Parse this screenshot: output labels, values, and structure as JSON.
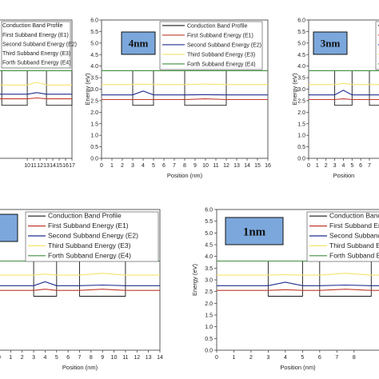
{
  "legend_labels": [
    "Conduction Band Profile",
    "First Subband Energy (E1)",
    "Second Subband Energy (E2)",
    "Third Subband Energy (E3)",
    "Forth Subband Energy (E4)"
  ],
  "legend_labels_partial": [
    "Conduction Band Profile",
    "First Subband Energy (E1)",
    "Second Subband Energy (E2)",
    "Third Subband Energy (E3)",
    "Forth Subband Energy (E4)"
  ],
  "colors": {
    "cb": "#1a1a1a",
    "e1": "#c0392b",
    "e2": "#1f2c8f",
    "e3": "#f7e36b",
    "e4": "#3f8f3f",
    "tag_bg": "#7ba7dc"
  },
  "chart_data": [
    {
      "type": "line",
      "panel": "top-left (partially visible)",
      "xlabel": "",
      "ylabel": "",
      "xticks": [
        10,
        11,
        12,
        13,
        14,
        15,
        16,
        17
      ],
      "xlim": [
        5.6,
        17
      ],
      "ylim": [
        0,
        6
      ],
      "wells": [
        [
          6,
          10
        ],
        [
          13,
          17
        ]
      ],
      "cb": {
        "barrier": 3.8,
        "well": 2.3
      },
      "series": [
        {
          "name": "First Subband Energy (E1)",
          "color_key": "e1",
          "x": [
            5.6,
            10,
            11.5,
            13,
            17
          ],
          "y": [
            2.58,
            2.58,
            2.62,
            2.58,
            2.58
          ]
        },
        {
          "name": "Second Subband Energy (E2)",
          "color_key": "e2",
          "x": [
            5.6,
            10,
            11.5,
            13,
            17
          ],
          "y": [
            2.78,
            2.78,
            2.85,
            2.78,
            2.78
          ]
        },
        {
          "name": "Third Subband Energy (E3)",
          "color_key": "e3",
          "x": [
            5.6,
            10,
            11.5,
            13,
            17
          ],
          "y": [
            3.18,
            3.18,
            3.3,
            3.18,
            3.18
          ]
        },
        {
          "name": "Forth Subband Energy (E4)",
          "color_key": "e4",
          "x": [
            5.6,
            17
          ],
          "y": [
            3.8,
            3.8
          ]
        }
      ]
    },
    {
      "type": "line",
      "panel": "top-middle",
      "tag": "4nm",
      "xlabel": "Position (nm)",
      "ylabel": "Energy (eV)",
      "xticks": [
        0,
        1,
        2,
        3,
        4,
        5,
        6,
        7,
        8,
        9,
        10,
        11,
        12,
        13,
        14,
        15,
        16
      ],
      "yticks": [
        "0.0",
        "0.5",
        "1.0",
        "1.5",
        "2.0",
        "2.5",
        "3.0",
        "3.5",
        "4.0",
        "4.5",
        "5.0",
        "5.5",
        "6.0"
      ],
      "xlim": [
        0,
        16
      ],
      "ylim": [
        0,
        6
      ],
      "wells": [
        [
          3,
          5
        ],
        [
          8,
          12
        ]
      ],
      "cb": {
        "barrier": 3.8,
        "well": 2.3
      },
      "series": [
        {
          "name": "First Subband Energy (E1)",
          "color_key": "e1",
          "x": [
            0,
            3,
            4,
            5,
            8,
            10,
            12,
            16
          ],
          "y": [
            2.55,
            2.55,
            2.55,
            2.55,
            2.55,
            2.58,
            2.55,
            2.55
          ]
        },
        {
          "name": "Second Subband Energy (E2)",
          "color_key": "e2",
          "x": [
            0,
            3,
            4,
            5,
            8,
            10,
            12,
            16
          ],
          "y": [
            2.75,
            2.75,
            2.92,
            2.75,
            2.75,
            2.76,
            2.75,
            2.75
          ]
        },
        {
          "name": "Third Subband Energy (E3)",
          "color_key": "e3",
          "x": [
            0,
            3,
            4,
            5,
            8,
            10,
            12,
            16
          ],
          "y": [
            3.2,
            3.2,
            3.22,
            3.2,
            3.2,
            3.22,
            3.2,
            3.2
          ]
        },
        {
          "name": "Forth Subband Energy (E4)",
          "color_key": "e4",
          "x": [
            0,
            16
          ],
          "y": [
            3.8,
            3.8
          ]
        }
      ]
    },
    {
      "type": "line",
      "panel": "top-right (partially visible)",
      "tag": "3nm",
      "xlabel": "Position",
      "ylabel": "Energy (eV)",
      "xticks": [
        0,
        1,
        2,
        3,
        4,
        5,
        6,
        7
      ],
      "yticks": [
        "0.0",
        "0.5",
        "1.0",
        "1.5",
        "2.0",
        "2.5",
        "3.0",
        "3.5",
        "4.0",
        "4.5",
        "5.0",
        "5.5",
        "6.0"
      ],
      "xlim": [
        0,
        8.2
      ],
      "ylim": [
        0,
        6
      ],
      "wells": [
        [
          3,
          5
        ],
        [
          7,
          10
        ]
      ],
      "cb": {
        "barrier": 3.8,
        "well": 2.3
      },
      "series": [
        {
          "name": "First Subband Energy (E1)",
          "color_key": "e1",
          "x": [
            0,
            3,
            4,
            5,
            8.2
          ],
          "y": [
            2.55,
            2.55,
            2.58,
            2.55,
            2.55
          ]
        },
        {
          "name": "Second Subband Energy (E2)",
          "color_key": "e2",
          "x": [
            0,
            3,
            4,
            5,
            8.2
          ],
          "y": [
            2.75,
            2.75,
            2.95,
            2.75,
            2.75
          ]
        },
        {
          "name": "Third Subband Energy (E3)",
          "color_key": "e3",
          "x": [
            0,
            3,
            4,
            5,
            8.2
          ],
          "y": [
            3.2,
            3.2,
            3.25,
            3.2,
            3.2
          ]
        },
        {
          "name": "Forth Subband Energy (E4)",
          "color_key": "e4",
          "x": [
            0,
            8.2
          ],
          "y": [
            3.8,
            3.8
          ]
        }
      ]
    },
    {
      "type": "line",
      "panel": "bottom-left (partially visible)",
      "xlabel": "Position (nm)",
      "ylabel": "",
      "xticks": [
        0,
        1,
        2,
        3,
        4,
        5,
        6,
        7,
        8,
        9,
        10,
        11,
        12,
        13,
        14
      ],
      "xlim": [
        0,
        14
      ],
      "ylim": [
        0,
        6
      ],
      "wells": [
        [
          3,
          5
        ],
        [
          7,
          11
        ]
      ],
      "cb": {
        "barrier": 3.8,
        "well": 2.3
      },
      "series": [
        {
          "name": "First Subband Energy (E1)",
          "color_key": "e1",
          "x": [
            0,
            3,
            4,
            5,
            7,
            9,
            11,
            14
          ],
          "y": [
            2.55,
            2.55,
            2.6,
            2.55,
            2.55,
            2.6,
            2.55,
            2.55
          ]
        },
        {
          "name": "Second Subband Energy (E2)",
          "color_key": "e2",
          "x": [
            0,
            3,
            4,
            5,
            7,
            9,
            11,
            14
          ],
          "y": [
            2.75,
            2.75,
            2.92,
            2.75,
            2.75,
            2.78,
            2.75,
            2.75
          ]
        },
        {
          "name": "Third Subband Energy (E3)",
          "color_key": "e3",
          "x": [
            0,
            3,
            4,
            5,
            7,
            9,
            11,
            14
          ],
          "y": [
            3.2,
            3.2,
            3.25,
            3.2,
            3.2,
            3.28,
            3.2,
            3.2
          ]
        },
        {
          "name": "Forth Subband Energy (E4)",
          "color_key": "e4",
          "x": [
            0,
            14
          ],
          "y": [
            3.8,
            3.8
          ]
        }
      ]
    },
    {
      "type": "line",
      "panel": "bottom-right (partially visible)",
      "tag": "1nm",
      "xlabel": "Position (nm)",
      "ylabel": "Energy (eV)",
      "xticks": [
        0,
        1,
        2,
        3,
        4,
        5,
        6,
        7,
        8
      ],
      "yticks": [
        "0.0",
        "0.5",
        "1.0",
        "1.5",
        "2.0",
        "2.5",
        "3.0",
        "3.5",
        "4.0",
        "4.5",
        "5.0",
        "5.5",
        "6.0"
      ],
      "xlim": [
        0,
        9.5
      ],
      "ylim": [
        0,
        6
      ],
      "wells": [
        [
          3,
          5
        ],
        [
          6,
          9
        ]
      ],
      "cb": {
        "barrier": 3.8,
        "well": 2.3
      },
      "series": [
        {
          "name": "First Subband Energy (E1)",
          "color_key": "e1",
          "x": [
            0,
            3,
            4,
            5,
            6,
            7.5,
            9,
            9.5
          ],
          "y": [
            2.55,
            2.55,
            2.58,
            2.55,
            2.55,
            2.6,
            2.55,
            2.55
          ]
        },
        {
          "name": "Second Subband Energy (E2)",
          "color_key": "e2",
          "x": [
            0,
            3,
            4,
            5,
            6,
            7.5,
            9,
            9.5
          ],
          "y": [
            2.75,
            2.75,
            2.9,
            2.75,
            2.75,
            2.78,
            2.75,
            2.75
          ]
        },
        {
          "name": "Third Subband Energy (E3)",
          "color_key": "e3",
          "x": [
            0,
            3,
            4,
            5,
            6,
            7.5,
            9,
            9.5
          ],
          "y": [
            3.2,
            3.2,
            3.22,
            3.2,
            3.2,
            3.28,
            3.2,
            3.2
          ]
        },
        {
          "name": "Forth Subband Energy (E4)",
          "color_key": "e4",
          "x": [
            0,
            9.5
          ],
          "y": [
            3.8,
            3.8
          ]
        }
      ]
    }
  ]
}
